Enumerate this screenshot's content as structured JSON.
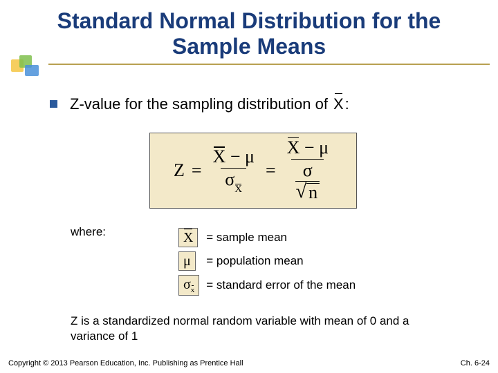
{
  "title": "Standard Normal Distribution for the Sample Means",
  "bullet": {
    "text_before": "Z-value for the sampling distribution of",
    "symbol": "X",
    "colon": ":"
  },
  "formula": {
    "lhs": "Z",
    "mid_num_a": "X",
    "mid_num_op": "−",
    "mid_num_b": "μ",
    "mid_den_sigma": "σ",
    "mid_den_sub": "X",
    "rhs_num_a": "X",
    "rhs_num_op": "−",
    "rhs_num_b": "μ",
    "rhs_den_sigma": "σ",
    "rhs_den_sqrt": "n"
  },
  "where_label": "where:",
  "defs": [
    {
      "sym_main": "X",
      "sym_sub": "",
      "has_bar": true,
      "is_sigma_xbar": false,
      "text": "= sample mean"
    },
    {
      "sym_main": "μ",
      "sym_sub": "",
      "has_bar": false,
      "is_sigma_xbar": false,
      "text": "= population mean"
    },
    {
      "sym_main": "σ",
      "sym_sub": "x̄",
      "has_bar": false,
      "is_sigma_xbar": true,
      "text": "= standard error of the mean"
    }
  ],
  "note": "Z is a standardized normal random variable with mean of 0 and a variance of 1",
  "footer": {
    "left": "Copyright © 2013 Pearson Education, Inc. Publishing as Prentice Hall",
    "right": "Ch. 6-24"
  },
  "colors": {
    "title": "#1a3c7a",
    "rule": "#b8a050",
    "bullet": "#2a5a9c",
    "formula_bg": "#f3e9c9"
  }
}
